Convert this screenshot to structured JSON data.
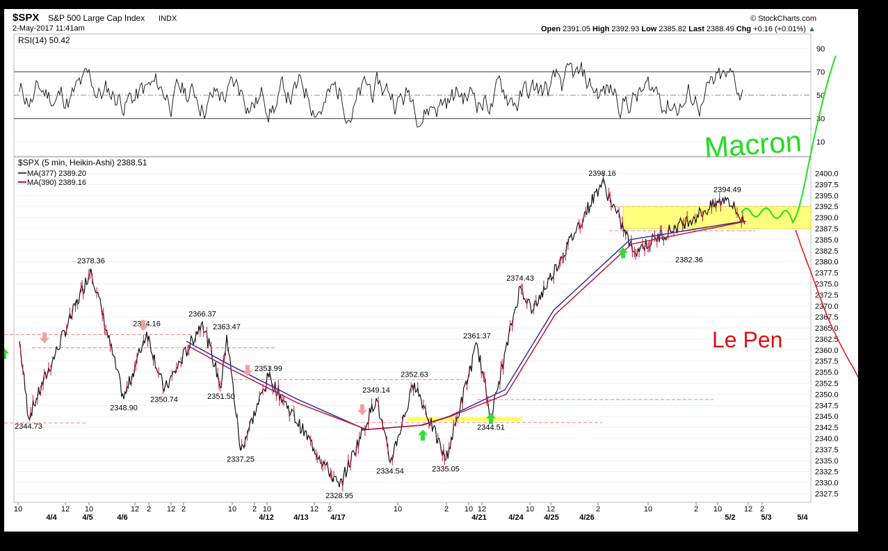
{
  "header": {
    "symbol": "$SPX",
    "name": "S&P 500 Large Cap Index",
    "exchange": "INDX",
    "datetime": "2-May-2017 11:41am",
    "watermark": "© StockCharts.com",
    "quote": {
      "open_label": "Open",
      "open": "2391.05",
      "high_label": "High",
      "high": "2392.93",
      "low_label": "Low",
      "low": "2385.82",
      "last_label": "Last",
      "last": "2388.49",
      "chg_label": "Chg",
      "chg": "+0.16 (+0.01%)",
      "chg_arrow": "▲"
    }
  },
  "rsi_panel": {
    "label": "RSI(14) 50.42",
    "ticks": [
      "90",
      "70",
      "50",
      "30",
      "10"
    ],
    "overbought": 70,
    "oversold": 30
  },
  "price_panel": {
    "legend": [
      {
        "text": "$SPX (5 min, Heikin-Ashi) 2388.51",
        "color": "#000000"
      },
      {
        "text": "MA(377) 2389.20",
        "color": "#2f2f9f"
      },
      {
        "text": "MA(390) 2389.16",
        "color": "#c0143c"
      }
    ],
    "y_ticks": [
      "2400.0",
      "2397.5",
      "2395.0",
      "2392.5",
      "2390.0",
      "2387.5",
      "2385.0",
      "2382.5",
      "2380.0",
      "2377.5",
      "2375.0",
      "2372.5",
      "2370.0",
      "2367.5",
      "2365.0",
      "2362.5",
      "2360.0",
      "2357.5",
      "2355.0",
      "2352.5",
      "2350.0",
      "2347.5",
      "2345.0",
      "2342.5",
      "2340.0",
      "2337.5",
      "2335.0",
      "2332.5",
      "2330.0",
      "2327.5"
    ]
  },
  "x_axis": {
    "hour_ticks": [
      "10",
      "12",
      "10",
      "12",
      "2",
      "12",
      "2",
      "10",
      "2",
      "10",
      "12",
      "2",
      "10",
      "2",
      "10",
      "12",
      "10",
      "12",
      "2",
      "10",
      "2",
      "10",
      "12",
      "2"
    ],
    "date_ticks": [
      "4/4",
      "4/5",
      "4/6",
      "4/12",
      "4/13",
      "4/17",
      "4/21",
      "4/24",
      "4/25",
      "4/26",
      "5/2",
      "5/3",
      "5/4"
    ]
  },
  "annotations": {
    "macron": "Macron",
    "le_pen": "Le Pen",
    "colors": {
      "macron": "#22dd22",
      "le_pen": "#e01010",
      "highlight": "#ffff66",
      "signal_up": "#33dd33",
      "signal_down": "#f0a0a0"
    }
  },
  "chart_data": {
    "type": "line",
    "title": "$SPX S&P 500 Large Cap Index INDX",
    "series": [
      {
        "name": "$SPX (5 min, Heikin-Ashi)",
        "x": [
          "4/3",
          "4/4",
          "4/5",
          "4/5",
          "4/6",
          "4/7",
          "4/10",
          "4/11",
          "4/11",
          "4/12",
          "4/13",
          "4/17",
          "4/18",
          "4/19",
          "4/19",
          "4/20",
          "4/20",
          "4/21",
          "4/24",
          "4/24",
          "4/26",
          "4/28",
          "5/1",
          "5/2"
        ],
        "values": [
          2362,
          2344.73,
          2378.36,
          2348.9,
          2364.16,
          2350.74,
          2366.37,
          2351.5,
          2363.47,
          2337.25,
          2353.99,
          2328.95,
          2349.14,
          2334.54,
          2352.63,
          2335.05,
          2361.37,
          2344.51,
          2374.43,
          2369,
          2398.16,
          2382.36,
          2394.49,
          2388.51
        ]
      },
      {
        "name": "MA(377)",
        "values": [
          2362,
          2357,
          2349,
          2342,
          2343,
          2345,
          2351,
          2369,
          2385,
          2389.2
        ]
      },
      {
        "name": "MA(390)",
        "values": [
          2361,
          2356,
          2348,
          2342,
          2343,
          2345,
          2350,
          2368,
          2384,
          2389.16
        ]
      }
    ],
    "labeled_points": [
      "2378.36",
      "2344.73",
      "2348.90",
      "2364.16",
      "2350.74",
      "2366.37",
      "2351.50",
      "2363.47",
      "2337.25",
      "2353.99",
      "2328.95",
      "2349.14",
      "2334.54",
      "2352.63",
      "2335.05",
      "2361.37",
      "2344.51",
      "2374.43",
      "2398.16",
      "2382.36",
      "2394.49"
    ],
    "ylim": [
      2326,
      2401.5
    ],
    "rsi_ylim": [
      0,
      100
    ],
    "grid": true
  }
}
